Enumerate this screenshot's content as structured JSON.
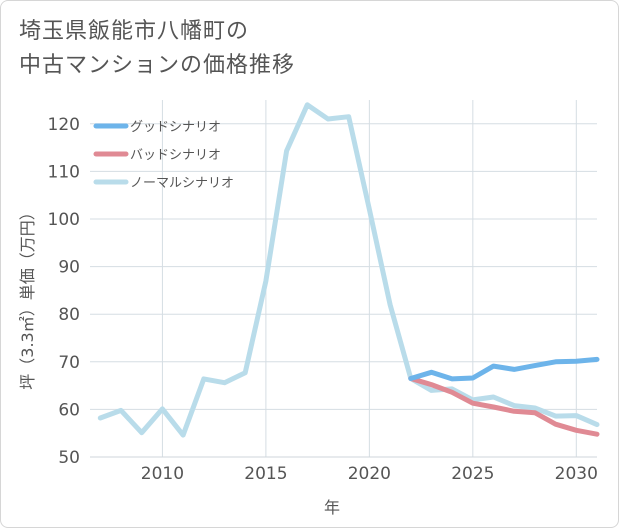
{
  "title": {
    "line1": "埼玉県飯能市八幡町の",
    "line2": "中古マンションの価格推移"
  },
  "chart_data": {
    "type": "line",
    "title": "埼玉県飯能市八幡町の中古マンションの価格推移",
    "xlabel": "年",
    "ylabel": "坪（3.3㎡）単価（万円）",
    "xlim": [
      2006.5,
      2031
    ],
    "ylim": [
      50,
      125
    ],
    "xticks": [
      2010,
      2015,
      2020,
      2025,
      2030
    ],
    "yticks": [
      50,
      60,
      70,
      80,
      90,
      100,
      110,
      120
    ],
    "grid": true,
    "legend_position": "top-left",
    "series": [
      {
        "name": "グッドシナリオ",
        "color": "#6db4ea",
        "x": [
          2022,
          2023,
          2024,
          2025,
          2026,
          2027,
          2028,
          2029,
          2030,
          2031
        ],
        "values": [
          66.5,
          67.8,
          66.4,
          66.6,
          69.1,
          68.4,
          69.2,
          70.0,
          70.1,
          70.5
        ]
      },
      {
        "name": "バッドシナリオ",
        "color": "#e08a94",
        "x": [
          2022,
          2023,
          2024,
          2025,
          2026,
          2027,
          2028,
          2029,
          2030,
          2031
        ],
        "values": [
          66.5,
          65.2,
          63.6,
          61.3,
          60.5,
          59.6,
          59.3,
          56.9,
          55.6,
          54.8
        ]
      },
      {
        "name": "ノーマルシナリオ",
        "color": "#b9dcea",
        "x": [
          2007,
          2008,
          2009,
          2010,
          2011,
          2012,
          2013,
          2014,
          2015,
          2016,
          2017,
          2018,
          2019,
          2020,
          2021,
          2022,
          2023,
          2024,
          2025,
          2026,
          2027,
          2028,
          2029,
          2030,
          2031
        ],
        "values": [
          58.2,
          59.8,
          55.1,
          60.1,
          54.6,
          66.4,
          65.6,
          67.7,
          87.0,
          114.3,
          124.0,
          121.0,
          121.5,
          102.0,
          82.0,
          66.5,
          64.0,
          64.3,
          62.0,
          62.6,
          60.8,
          60.3,
          58.6,
          58.7,
          56.8
        ]
      }
    ]
  }
}
